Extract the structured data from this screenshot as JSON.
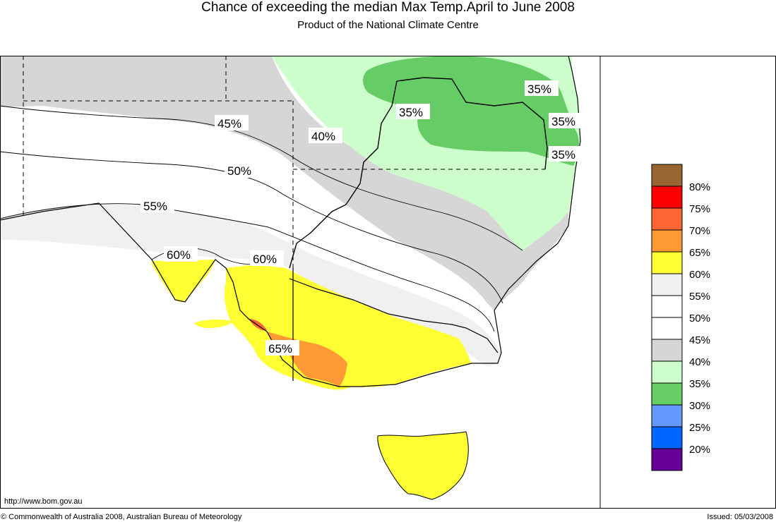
{
  "header": {
    "title": "Chance of exceeding the median Max Temp.April to June 2008",
    "subtitle": "Product of the National Climate Centre"
  },
  "footer": {
    "url": "http://www.bom.gov.au",
    "copyright": "© Commonwealth of Australia 2008, Australian Bureau of Meteorology",
    "issued": "Issued: 05/03/2008"
  },
  "map": {
    "region": "South-eastern Australia",
    "contour_labels": [
      "45%",
      "40%",
      "50%",
      "55%",
      "60%",
      "60%",
      "65%",
      "35%",
      "35%",
      "35%",
      "35%"
    ],
    "colors": {
      "c35": "#66cc66",
      "c40": "#ccffcc",
      "c45": "#d6d6d6",
      "c50": "#ffffff",
      "c55": "#f0f0f0",
      "c60": "#ffff33",
      "c65": "#ff9933",
      "c70": "#ff6633"
    }
  },
  "legend": {
    "items": [
      {
        "label": "",
        "color": "#996633"
      },
      {
        "label": "80%",
        "color": "#ff0000"
      },
      {
        "label": "75%",
        "color": "#ff6633"
      },
      {
        "label": "70%",
        "color": "#ff9933"
      },
      {
        "label": "65%",
        "color": "#ffff33"
      },
      {
        "label": "60%",
        "color": "#f0f0f0"
      },
      {
        "label": "55%",
        "color": "#ffffff"
      },
      {
        "label": "50%",
        "color": "#ffffff"
      },
      {
        "label": "45%",
        "color": "#d6d6d6"
      },
      {
        "label": "40%",
        "color": "#ccffcc"
      },
      {
        "label": "35%",
        "color": "#66cc66"
      },
      {
        "label": "30%",
        "color": "#6699ff"
      },
      {
        "label": "25%",
        "color": "#0066ff"
      },
      {
        "label": "20%",
        "color": "#660099"
      }
    ]
  }
}
